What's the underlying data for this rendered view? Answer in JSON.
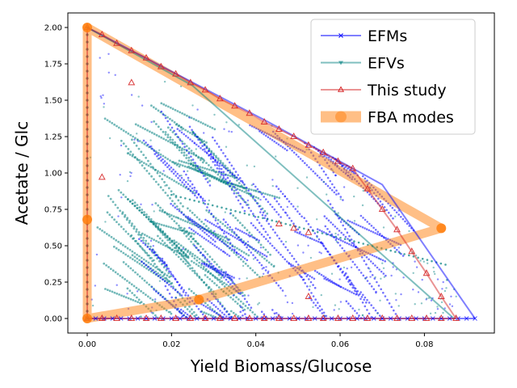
{
  "chart_data": {
    "type": "scatter",
    "title": "",
    "xlabel": "Yield Biomass/Glucose",
    "ylabel": "Acetate / Glc",
    "xlim": [
      -0.0046,
      0.0966
    ],
    "ylim": [
      -0.1,
      2.1
    ],
    "x_ticks": [
      "0.00",
      "0.02",
      "0.04",
      "0.06",
      "0.08"
    ],
    "y_ticks": [
      "0.00",
      "0.25",
      "0.50",
      "0.75",
      "1.00",
      "1.25",
      "1.50",
      "1.75",
      "2.00"
    ],
    "grid": false,
    "legend_position": "upper right",
    "series": [
      {
        "name": "EFMs",
        "color": "#0000ff",
        "marker": "x",
        "boundary": [
          [
            0,
            2.0
          ],
          [
            0.043,
            1.35
          ],
          [
            0.07,
            0.92
          ],
          [
            0.092,
            0.0
          ]
        ],
        "baseline": [
          [
            0,
            0
          ],
          [
            0.092,
            0
          ]
        ]
      },
      {
        "name": "EFVs",
        "color": "#008080",
        "marker": "triangle-down",
        "boundary": [
          [
            0,
            2.0
          ],
          [
            0.025,
            1.6
          ],
          [
            0.087,
            0.0
          ]
        ],
        "line": [
          [
            0.02,
            0.85
          ],
          [
            0.085,
            0.37
          ]
        ]
      },
      {
        "name": "This study",
        "color": "#d62728",
        "marker": "triangle-up",
        "points": [
          [
            0,
            2.0
          ],
          [
            0.0035,
            1.95
          ],
          [
            0.007,
            1.89
          ],
          [
            0.0105,
            1.84
          ],
          [
            0.014,
            1.79
          ],
          [
            0.0175,
            1.73
          ],
          [
            0.021,
            1.68
          ],
          [
            0.0245,
            1.62
          ],
          [
            0.028,
            1.57
          ],
          [
            0.0315,
            1.51
          ],
          [
            0.035,
            1.46
          ],
          [
            0.0385,
            1.41
          ],
          [
            0.042,
            1.35
          ],
          [
            0.0455,
            1.3
          ],
          [
            0.049,
            1.25
          ],
          [
            0.0525,
            1.19
          ],
          [
            0.056,
            1.14
          ],
          [
            0.0595,
            1.08
          ],
          [
            0.063,
            1.03
          ],
          [
            0.0665,
            0.89
          ],
          [
            0.07,
            0.75
          ],
          [
            0.0735,
            0.61
          ],
          [
            0.077,
            0.46
          ],
          [
            0.0805,
            0.31
          ],
          [
            0.084,
            0.15
          ],
          [
            0.0875,
            0.0
          ],
          [
            0.0035,
            0.97
          ],
          [
            0.0105,
            1.62
          ],
          [
            0.0455,
            0.65
          ],
          [
            0.049,
            0.62
          ],
          [
            0.0525,
            0.59
          ],
          [
            0.0525,
            0.15
          ],
          [
            0,
            0
          ],
          [
            0.0035,
            0
          ],
          [
            0.007,
            0
          ],
          [
            0.0105,
            0
          ],
          [
            0.014,
            0
          ],
          [
            0.0175,
            0
          ],
          [
            0.021,
            0
          ],
          [
            0.0245,
            0
          ],
          [
            0.028,
            0
          ],
          [
            0.0315,
            0
          ],
          [
            0.035,
            0
          ],
          [
            0.0385,
            0
          ],
          [
            0.042,
            0
          ],
          [
            0.0455,
            0
          ],
          [
            0.049,
            0
          ],
          [
            0.0525,
            0
          ],
          [
            0.056,
            0
          ],
          [
            0.0595,
            0
          ],
          [
            0.063,
            0
          ],
          [
            0.0665,
            0
          ],
          [
            0.07,
            0
          ],
          [
            0.0735,
            0
          ],
          [
            0.077,
            0
          ],
          [
            0.0805,
            0
          ],
          [
            0.084,
            0
          ]
        ]
      },
      {
        "name": "FBA modes",
        "color": "#ff7f0e",
        "marker": "circle",
        "points": [
          [
            0,
            2.0
          ],
          [
            0,
            0.68
          ],
          [
            0,
            0.0
          ],
          [
            0.0265,
            0.13
          ],
          [
            0.084,
            0.62
          ]
        ],
        "path": [
          [
            0,
            2.0
          ],
          [
            0,
            0.68
          ],
          [
            0,
            0.0
          ],
          [
            0.0265,
            0.13
          ],
          [
            0.084,
            0.62
          ],
          [
            0,
            2.0
          ]
        ]
      }
    ]
  }
}
